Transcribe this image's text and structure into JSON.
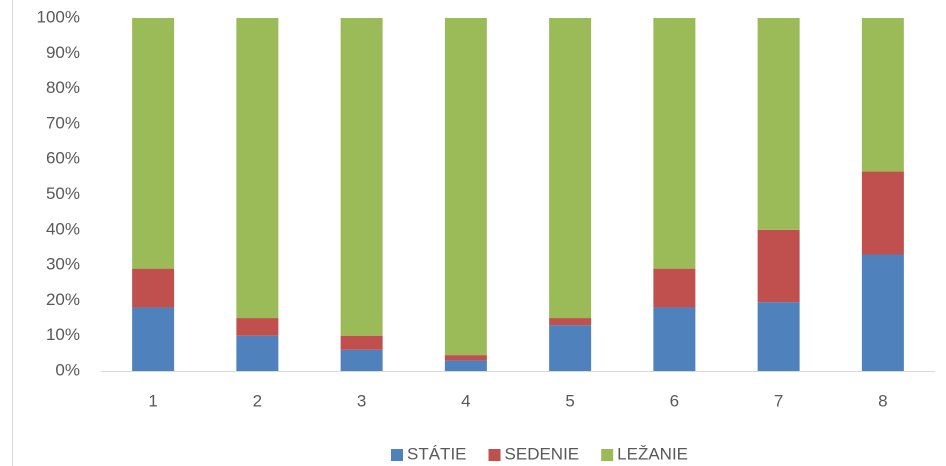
{
  "chart_data": {
    "type": "stacked_bar",
    "categories": [
      "1",
      "2",
      "3",
      "4",
      "5",
      "6",
      "7",
      "8"
    ],
    "series": [
      {
        "name": "STÁTIE",
        "color": "#4f81bd",
        "values": [
          18,
          10,
          6,
          3,
          13,
          18,
          19.5,
          33
        ]
      },
      {
        "name": "SEDENIE",
        "color": "#c0504d",
        "values": [
          11,
          5,
          4,
          1.5,
          2,
          11,
          20.5,
          23.5
        ]
      },
      {
        "name": "LEŽANIE",
        "color": "#9bbb59",
        "values": [
          71,
          85,
          90,
          95.5,
          85,
          71,
          60,
          43.5
        ]
      }
    ],
    "ylim": [
      0,
      100
    ],
    "yticks": [
      {
        "value": 0,
        "label": "0%"
      },
      {
        "value": 10,
        "label": "10%"
      },
      {
        "value": 20,
        "label": "20%"
      },
      {
        "value": 30,
        "label": "30%"
      },
      {
        "value": 40,
        "label": "40%"
      },
      {
        "value": 50,
        "label": "50%"
      },
      {
        "value": 60,
        "label": "60%"
      },
      {
        "value": 70,
        "label": "70%"
      },
      {
        "value": 80,
        "label": "80%"
      },
      {
        "value": 90,
        "label": "90%"
      },
      {
        "value": 100,
        "label": "100%"
      }
    ],
    "grid": false,
    "legend": "bottom"
  }
}
